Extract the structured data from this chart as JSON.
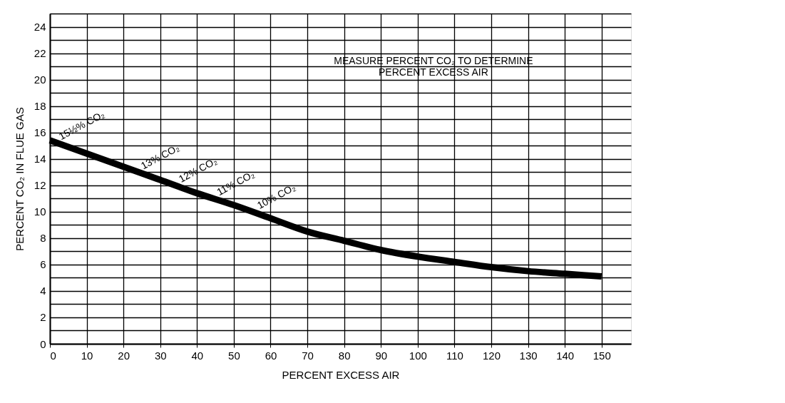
{
  "chart_data": {
    "type": "line",
    "xlabel": "PERCENT EXCESS AIR",
    "ylabel": "PERCENT CO₂ IN FLUE GAS",
    "x": [
      0,
      10,
      20,
      30,
      40,
      50,
      60,
      70,
      80,
      90,
      100,
      110,
      120,
      130,
      140,
      150
    ],
    "series": [
      {
        "color": "#000000",
        "values": [
          15.4,
          14.4,
          13.4,
          12.4,
          11.4,
          10.5,
          9.5,
          8.5,
          7.8,
          7.1,
          6.6,
          6.2,
          5.8,
          5.5,
          5.3,
          5.1
        ]
      }
    ],
    "xlim": [
      0,
      158
    ],
    "xticks": [
      0,
      10,
      20,
      30,
      40,
      50,
      60,
      70,
      80,
      90,
      100,
      110,
      120,
      130,
      140,
      150
    ],
    "ylim": [
      0,
      25
    ],
    "yticks": [
      0,
      {
        "value": 1,
        "label": null
      },
      2,
      {
        "value": 3,
        "label": null
      },
      4,
      {
        "value": 5,
        "label": null
      },
      6,
      {
        "value": 7,
        "label": null
      },
      8,
      {
        "value": 9,
        "label": null
      },
      10,
      {
        "value": 11,
        "label": null
      },
      12,
      {
        "value": 13,
        "label": null
      },
      14,
      {
        "value": 15,
        "label": null
      },
      16,
      {
        "value": 17,
        "label": null
      },
      18,
      {
        "value": 19,
        "label": null
      },
      20,
      {
        "value": 21,
        "label": null
      },
      22,
      {
        "value": 23,
        "label": null
      },
      24,
      {
        "value": 25,
        "label": null
      }
    ],
    "grid": true,
    "line_style": "solid",
    "marker": "none",
    "annotations": [
      "15½% CO₂",
      "13% CO₂",
      "12% CO₂",
      "11% CO₂",
      "10% CO₂",
      "MEASURE PERCENT CO₂ TO DETERMINE\nPERCENT EXCESS AIR"
    ]
  }
}
